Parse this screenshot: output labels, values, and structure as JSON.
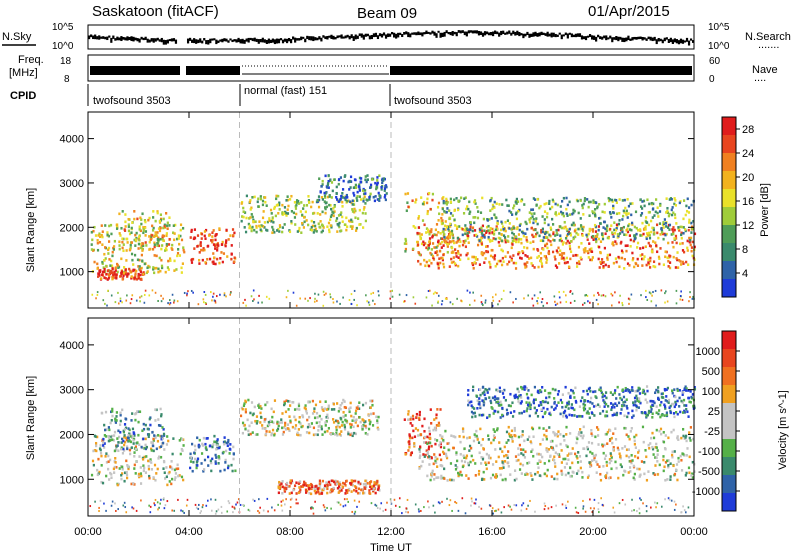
{
  "header": {
    "station": "Saskatoon (fitACF)",
    "beam": "Beam 09",
    "date": "01/Apr/2015"
  },
  "noise_panel": {
    "left_label": "N.Sky",
    "left_ticks": [
      "10^5",
      "10^0"
    ],
    "right_ticks": [
      "10^5",
      "10^0"
    ],
    "legend": "N.Search",
    "legend_line": "......."
  },
  "freq_panel": {
    "left_label_1": "Freq.",
    "left_label_2": "[MHz]",
    "left_ticks": [
      "18",
      "8"
    ],
    "right_ticks": [
      "60",
      "0"
    ],
    "legend": "Nave",
    "legend_line": "...."
  },
  "cpid": {
    "label": "CPID",
    "segments": [
      {
        "text": "twofsound 3503",
        "start_hour": 0
      },
      {
        "text": "normal (fast) 151",
        "start_hour": 6
      },
      {
        "text": "twofsound 3503",
        "start_hour": 12
      }
    ]
  },
  "colors": {
    "power": [
      "#1f3cd8",
      "#2f63a8",
      "#3a8a6c",
      "#4f9d58",
      "#9fcc3a",
      "#e9e12a",
      "#f2b21e",
      "#f08020",
      "#e8451f",
      "#e01c1c"
    ],
    "velocity": [
      "#1f3cd8",
      "#2f63a8",
      "#3a8a6c",
      "#55b048",
      "#c4c4c4",
      "#c4c4c4",
      "#f0a020",
      "#f07020",
      "#e8451f",
      "#e01c1c"
    ],
    "ground_scatter": "#c4c4c4"
  },
  "chart_data": [
    {
      "type": "heatmap",
      "title": "",
      "xlabel": "Time UT",
      "ylabel": "Slant Range [km]",
      "x_ticks": [
        "00:00",
        "04:00",
        "08:00",
        "12:00",
        "16:00",
        "20:00",
        "00:00"
      ],
      "xlim_hours": [
        0,
        24
      ],
      "y_ticks": [
        "1000",
        "2000",
        "3000",
        "4000"
      ],
      "ylim": [
        180,
        4600
      ],
      "colorbar": {
        "label": "Power [dB]",
        "ticks": [
          "4",
          "8",
          "12",
          "16",
          "20",
          "24",
          "28"
        ],
        "range": [
          0,
          30
        ]
      },
      "bands": [
        {
          "t0": 0.1,
          "t1": 3.8,
          "r0": 1000,
          "r1": 2100,
          "level": 0.55
        },
        {
          "t0": 0.3,
          "t1": 2.2,
          "r0": 850,
          "r1": 1100,
          "level": 0.9
        },
        {
          "t0": 1.2,
          "t1": 3.2,
          "r0": 1500,
          "r1": 2400,
          "level": 0.6
        },
        {
          "t0": 4.0,
          "t1": 5.8,
          "r0": 1200,
          "r1": 2000,
          "level": 0.85
        },
        {
          "t0": 6.0,
          "t1": 11.0,
          "r0": 1900,
          "r1": 2750,
          "level": 0.45
        },
        {
          "t0": 9.0,
          "t1": 11.8,
          "r0": 2600,
          "r1": 3200,
          "level": 0.2
        },
        {
          "t0": 12.5,
          "t1": 14.5,
          "r0": 1400,
          "r1": 2800,
          "level": 0.6
        },
        {
          "t0": 13.0,
          "t1": 24.0,
          "r0": 1100,
          "r1": 2100,
          "level": 0.75
        },
        {
          "t0": 14.0,
          "t1": 24.0,
          "r0": 1700,
          "r1": 2700,
          "level": 0.35
        }
      ]
    },
    {
      "type": "heatmap",
      "title": "",
      "xlabel": "Time UT",
      "ylabel": "Slant Range [km]",
      "x_ticks": [
        "00:00",
        "04:00",
        "08:00",
        "12:00",
        "16:00",
        "20:00",
        "00:00"
      ],
      "xlim_hours": [
        0,
        24
      ],
      "y_ticks": [
        "1000",
        "2000",
        "3000",
        "4000"
      ],
      "ylim": [
        180,
        4600
      ],
      "colorbar": {
        "label": "Velocity [m s^-1]",
        "ticks": [
          "1000",
          "500",
          "100",
          "25",
          "-25",
          "-100",
          "-500",
          "-1000"
        ],
        "range": [
          -1000,
          1000
        ]
      },
      "bands": [
        {
          "t0": 0.1,
          "t1": 3.8,
          "r0": 900,
          "r1": 2000,
          "level": 0.5
        },
        {
          "t0": 0.5,
          "t1": 3.0,
          "r0": 1700,
          "r1": 2600,
          "level": 0.3
        },
        {
          "t0": 4.0,
          "t1": 5.8,
          "r0": 1200,
          "r1": 2000,
          "level": 0.25
        },
        {
          "t0": 6.0,
          "t1": 11.5,
          "r0": 2000,
          "r1": 2800,
          "level": 0.5
        },
        {
          "t0": 7.5,
          "t1": 11.5,
          "r0": 700,
          "r1": 1000,
          "level": 0.75
        },
        {
          "t0": 12.5,
          "t1": 14.0,
          "r0": 1500,
          "r1": 2600,
          "level": 0.8
        },
        {
          "t0": 13.0,
          "t1": 24.0,
          "r0": 1000,
          "r1": 2200,
          "level": 0.5
        },
        {
          "t0": 15.0,
          "t1": 24.0,
          "r0": 2400,
          "r1": 3100,
          "level": 0.2
        }
      ]
    }
  ]
}
